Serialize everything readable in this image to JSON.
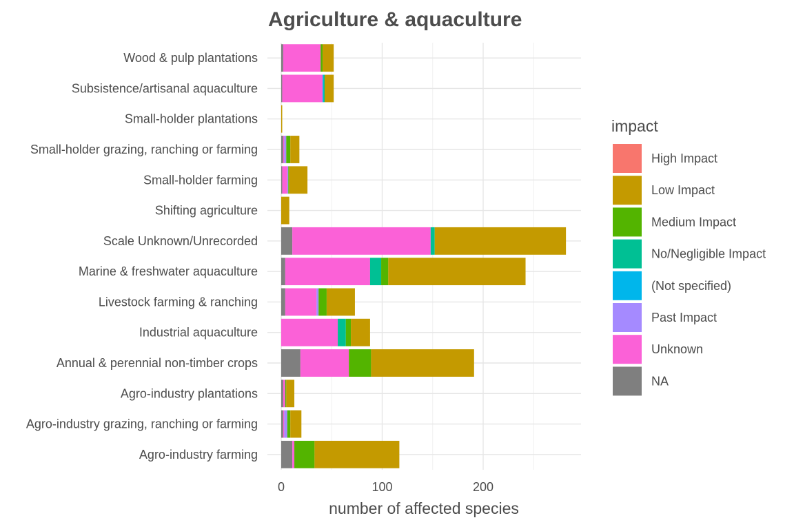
{
  "chart_data": {
    "type": "bar",
    "orientation": "horizontal",
    "stacked": true,
    "title": "Agriculture & aquaculture",
    "xlabel": "number of affected species",
    "ylabel": "",
    "xlim": [
      0,
      290
    ],
    "xticks": [
      0,
      100,
      200
    ],
    "grid": true,
    "legend": {
      "title": "impact",
      "position": "right"
    },
    "categories": [
      "Agro-industry farming",
      "Agro-industry grazing, ranching or farming",
      "Agro-industry plantations",
      "Annual & perennial non-timber crops",
      "Industrial aquaculture",
      "Livestock farming & ranching",
      "Marine & freshwater aquaculture",
      "Scale Unknown/Unrecorded",
      "Shifting agriculture",
      "Small-holder farming",
      "Small-holder grazing, ranching or farming",
      "Small-holder plantations",
      "Subsistence/artisanal aquaculture",
      "Wood & pulp plantations"
    ],
    "stack_order": [
      "NA",
      "Unknown",
      "Past Impact",
      "(Not specified)",
      "No/Negligible Impact",
      "Medium Impact",
      "Low Impact",
      "High Impact"
    ],
    "series": [
      {
        "name": "High Impact",
        "color": "#F8766D",
        "values": [
          0,
          0,
          0,
          0,
          0,
          0,
          0,
          0,
          0,
          0,
          0,
          0,
          0,
          0
        ]
      },
      {
        "name": "Low Impact",
        "color": "#C49A00",
        "values": [
          84,
          11,
          8,
          102,
          19,
          28,
          136,
          130,
          8,
          18,
          9,
          1,
          9,
          11
        ]
      },
      {
        "name": "Medium Impact",
        "color": "#53B400",
        "values": [
          20,
          3,
          1,
          22,
          5,
          8,
          7,
          0,
          0,
          1,
          4,
          0,
          0,
          2
        ]
      },
      {
        "name": "No/Negligible Impact",
        "color": "#00C094",
        "values": [
          0,
          0,
          0,
          0,
          8,
          0,
          11,
          4,
          0,
          0,
          0,
          0,
          1,
          0
        ]
      },
      {
        "name": "(Not specified)",
        "color": "#00B6EB",
        "values": [
          0,
          0,
          0,
          0,
          0,
          0,
          0,
          0,
          0,
          0,
          0,
          0,
          1,
          0
        ]
      },
      {
        "name": "Past Impact",
        "color": "#A58AFF",
        "values": [
          0,
          3,
          0,
          0,
          0,
          2,
          0,
          0,
          0,
          1,
          2,
          0,
          0,
          0
        ]
      },
      {
        "name": "Unknown",
        "color": "#FB61D7",
        "values": [
          2,
          1,
          2,
          48,
          56,
          31,
          84,
          137,
          0,
          5,
          1,
          0,
          40,
          37
        ]
      },
      {
        "name": "NA",
        "color": "#7F7F7F",
        "values": [
          11,
          2,
          2,
          19,
          0,
          4,
          4,
          11,
          0,
          1,
          2,
          0,
          1,
          2
        ]
      }
    ]
  }
}
